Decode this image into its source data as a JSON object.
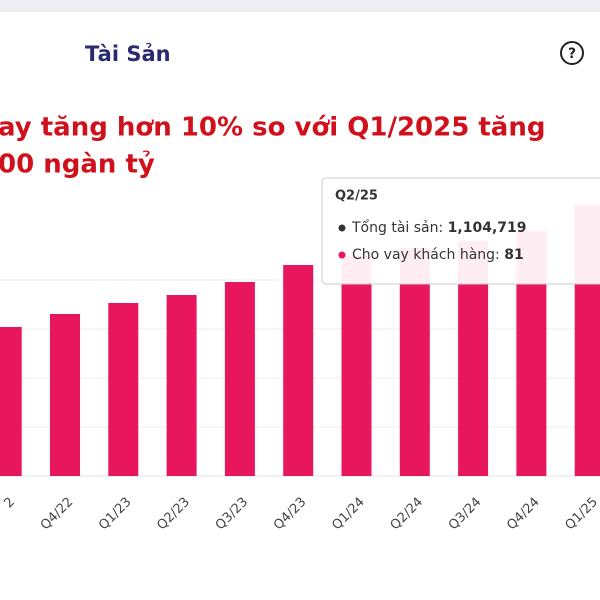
{
  "header": {
    "title": "Tài Sản",
    "help_icon": "?"
  },
  "headline": [
    "ay tăng hơn 10% so với Q1/2025 tăng",
    "00 ngàn tỷ"
  ],
  "chart_data": {
    "type": "bar",
    "categories": [
      "2",
      "Q4/22",
      "Q1/23",
      "Q2/23",
      "Q3/23",
      "Q4/23",
      "Q1/24",
      "Q2/24",
      "Q3/24",
      "Q4/24",
      "Q1/25"
    ],
    "values": [
      149,
      162,
      173,
      181,
      194,
      211,
      220,
      228,
      235,
      245,
      271
    ],
    "color": "#e8175d",
    "ylim": [
      0,
      476
    ],
    "gridlines": [
      49,
      98,
      147,
      196
    ],
    "tooltip": {
      "title": "Q2/25",
      "rows": [
        {
          "label": "Tổng tài sản: ",
          "value": "1,104,719",
          "color": "#333333"
        },
        {
          "label": "Cho vay khách hàng: ",
          "value": "81",
          "color": "#e8175d"
        }
      ]
    }
  }
}
